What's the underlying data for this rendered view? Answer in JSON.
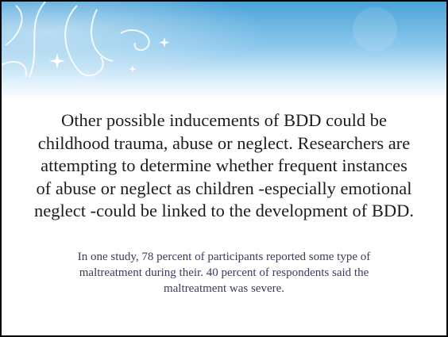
{
  "slide": {
    "body": [
      "Other possible inducements of BDD could be",
      "childhood trauma, abuse or neglect. Researchers are",
      "attempting to determine whether frequent instances",
      "of abuse or neglect as children -especially emotional",
      "neglect -could be linked to the development of BDD."
    ],
    "note": [
      "In one study, 78 percent of participants reported some type of",
      "maltreatment during their. 40 percent of respondents said the",
      "maltreatment was severe."
    ]
  }
}
